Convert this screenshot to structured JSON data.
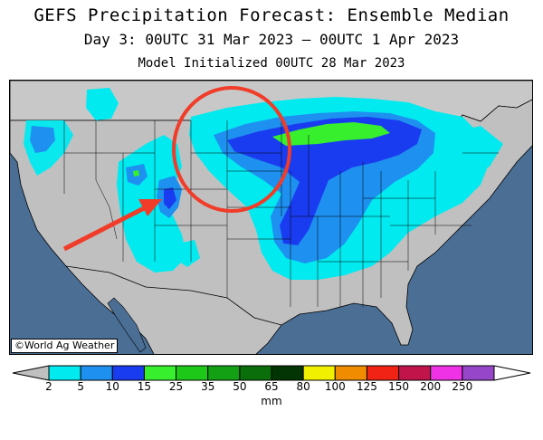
{
  "header": {
    "title": "GEFS Precipitation Forecast: Ensemble Median",
    "subtitle": "Day 3: 00UTC 31 Mar 2023 — 00UTC 1 Apr 2023",
    "init": "Model Initialized 00UTC 28 Mar 2023"
  },
  "map": {
    "credit": "©World Ag Weather",
    "colors": {
      "ocean": "#4a6e94",
      "land": "#c0c0c0",
      "canada": "#c8c8c8",
      "borders": "#000000",
      "annotation": "#f03c28"
    }
  },
  "legend": {
    "units": "mm",
    "ticks": [
      "2",
      "5",
      "10",
      "15",
      "25",
      "35",
      "50",
      "65",
      "80",
      "100",
      "125",
      "150",
      "200",
      "250"
    ],
    "colors": [
      "#00eaf0",
      "#1e90ef",
      "#1a3cf0",
      "#38ef2e",
      "#1ec818",
      "#14a014",
      "#0a6e0a",
      "#033403",
      "#f0f000",
      "#f08c00",
      "#f02314",
      "#c0144a",
      "#f032e6",
      "#9646c8"
    ]
  }
}
